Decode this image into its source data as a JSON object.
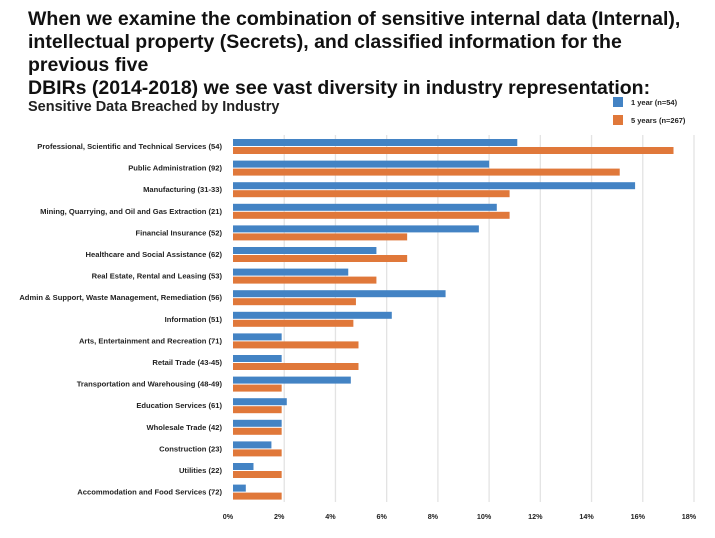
{
  "headline": "When we examine the combination of sensitive internal data (Internal),\n intellectual property (Secrets), and classified information for the previous five\nDBIRs (2014-2018) we see vast diversity in industry representation:",
  "chart_data": {
    "type": "bar",
    "orientation": "horizontal",
    "title": "Sensitive Data Breached by Industry",
    "categories": [
      "Professional, Scientific and Technical Services (54)",
      "Public Administration (92)",
      "Manufacturing (31-33)",
      "Mining, Quarrying, and Oil and Gas Extraction (21)",
      "Financial Insurance (52)",
      "Healthcare and Social Assistance (62)",
      "Real Estate, Rental and Leasing (53)",
      "Admin & Support, Waste Management, Remediation (56)",
      "Information (51)",
      "Arts, Entertainment and Recreation (71)",
      "Retail Trade (43-45)",
      "Transportation and Warehousing (48-49)",
      "Education Services (61)",
      "Wholesale Trade (42)",
      "Construction (23)",
      "Utilities (22)",
      "Accommodation and Food Services (72)"
    ],
    "series": [
      {
        "name": "1 year (n=54)",
        "color": "#4383c4",
        "values": [
          11.1,
          10.0,
          15.7,
          10.3,
          9.6,
          5.6,
          4.5,
          8.3,
          6.2,
          1.9,
          1.9,
          4.6,
          2.1,
          1.9,
          1.5,
          0.8,
          0.5
        ]
      },
      {
        "name": "5 years (n=267)",
        "color": "#e0783a",
        "values": [
          17.2,
          15.1,
          10.8,
          10.8,
          6.8,
          6.8,
          5.6,
          4.8,
          4.7,
          4.9,
          4.9,
          1.9,
          1.9,
          1.9,
          1.9,
          1.9,
          1.9
        ]
      }
    ],
    "xlim": [
      0,
      18
    ],
    "xticks": [
      "0%",
      "2%",
      "4%",
      "6%",
      "8%",
      "10%",
      "12%",
      "14%",
      "16%",
      "18%"
    ],
    "grid": true,
    "legend": "top-right"
  }
}
